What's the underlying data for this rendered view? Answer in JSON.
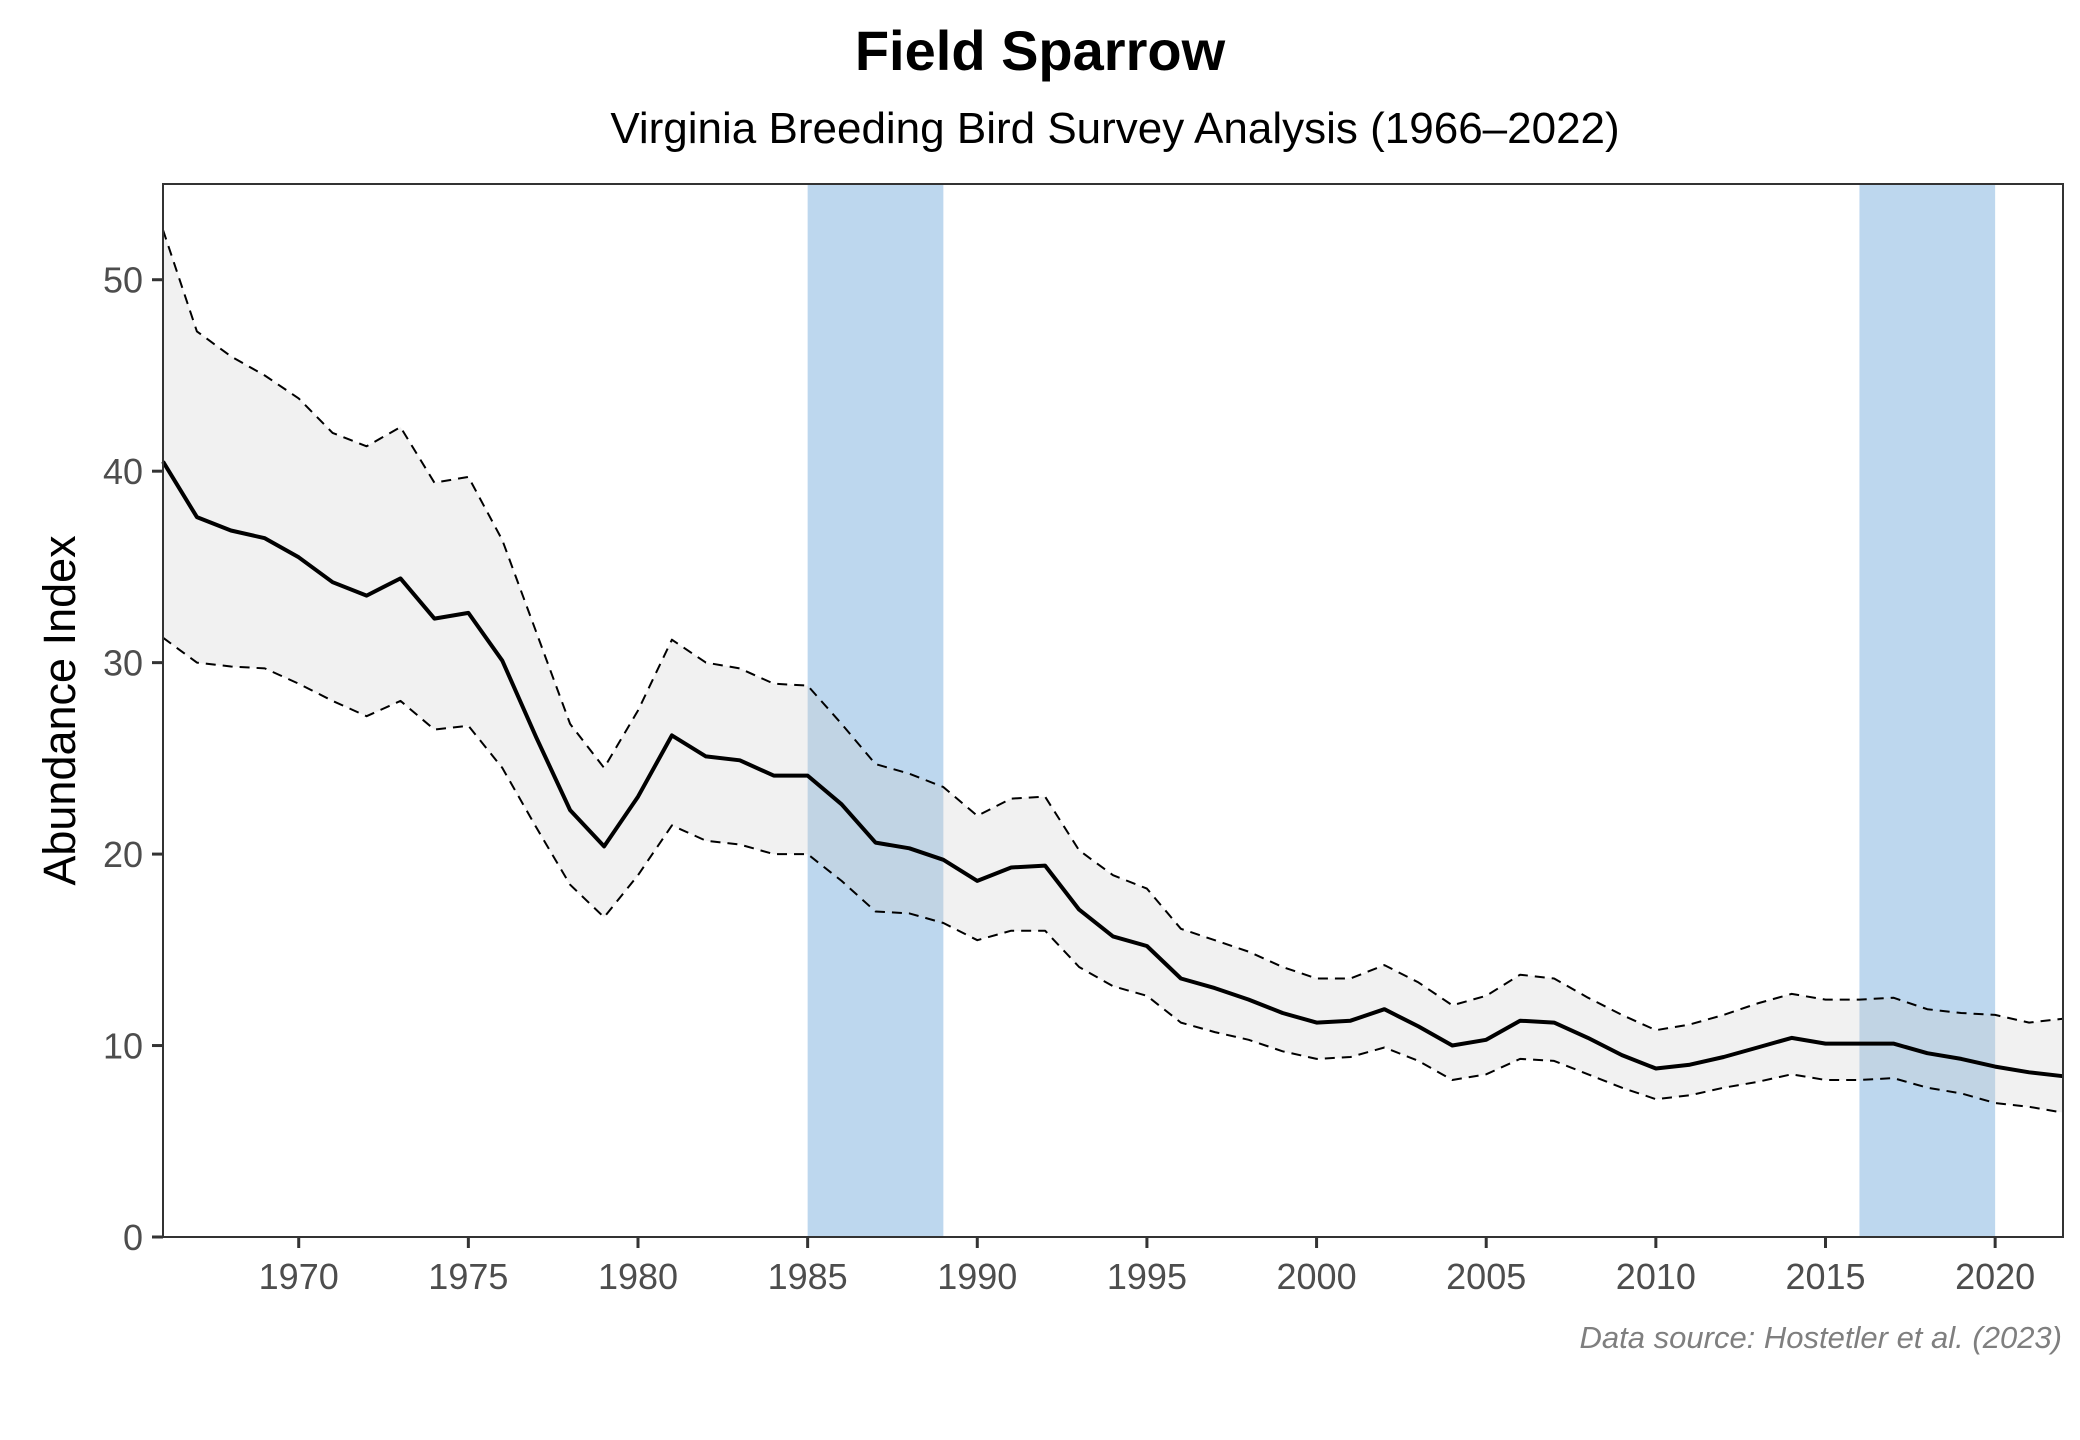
{
  "chart_data": {
    "type": "line",
    "title": "Field Sparrow",
    "subtitle": "Virginia Breeding Bird Survey Analysis (1966–2022)",
    "xlabel": "",
    "ylabel": "Abundance Index",
    "caption": "Data source: Hostetler et al. (2023)",
    "xlim": [
      1966,
      2022
    ],
    "ylim": [
      0,
      55
    ],
    "x_ticks": [
      1970,
      1975,
      1980,
      1985,
      1990,
      1995,
      2000,
      2005,
      2010,
      2015,
      2020
    ],
    "y_ticks": [
      0,
      10,
      20,
      30,
      40,
      50
    ],
    "grid": false,
    "legend": "none",
    "highlight_periods": [
      {
        "start": 1985,
        "end": 1989,
        "color": "#bdd7ee"
      },
      {
        "start": 2016,
        "end": 2020,
        "color": "#bdd7ee"
      }
    ],
    "colors": {
      "line": "#000000",
      "ribbon": "#f2f2f2",
      "band": "#bdd7ee",
      "axis": "#333333"
    },
    "x": [
      1966,
      1967,
      1968,
      1969,
      1970,
      1971,
      1972,
      1973,
      1974,
      1975,
      1976,
      1977,
      1978,
      1979,
      1980,
      1981,
      1982,
      1983,
      1984,
      1985,
      1986,
      1987,
      1988,
      1989,
      1990,
      1991,
      1992,
      1993,
      1994,
      1995,
      1996,
      1997,
      1998,
      1999,
      2000,
      2001,
      2002,
      2003,
      2004,
      2005,
      2006,
      2007,
      2008,
      2009,
      2010,
      2011,
      2012,
      2013,
      2014,
      2015,
      2016,
      2017,
      2018,
      2019,
      2020,
      2021,
      2022
    ],
    "series": [
      {
        "name": "Abundance Index",
        "style": "solid",
        "values": [
          40.5,
          37.6,
          36.9,
          36.5,
          35.5,
          34.2,
          33.5,
          34.4,
          32.3,
          32.6,
          30.1,
          26.1,
          22.3,
          20.4,
          23.0,
          26.2,
          25.1,
          24.9,
          24.1,
          24.1,
          22.6,
          20.6,
          20.3,
          19.7,
          18.6,
          19.3,
          19.4,
          17.1,
          15.7,
          15.2,
          13.5,
          13.0,
          12.4,
          11.7,
          11.2,
          11.3,
          11.9,
          11.0,
          10.0,
          10.3,
          11.3,
          11.2,
          10.4,
          9.5,
          8.8,
          9.0,
          9.4,
          9.9,
          10.4,
          10.1,
          10.1,
          10.1,
          9.6,
          9.3,
          8.9,
          8.6,
          8.4
        ]
      },
      {
        "name": "Upper credible limit",
        "style": "dashed",
        "values": [
          52.6,
          47.3,
          46.0,
          45.0,
          43.8,
          42.0,
          41.3,
          42.3,
          39.4,
          39.7,
          36.4,
          31.6,
          26.8,
          24.5,
          27.5,
          31.2,
          30.0,
          29.7,
          28.9,
          28.8,
          26.8,
          24.7,
          24.2,
          23.5,
          22.0,
          22.9,
          23.0,
          20.2,
          18.9,
          18.2,
          16.1,
          15.5,
          14.9,
          14.1,
          13.5,
          13.5,
          14.2,
          13.3,
          12.1,
          12.6,
          13.7,
          13.5,
          12.5,
          11.6,
          10.8,
          11.1,
          11.6,
          12.2,
          12.7,
          12.4,
          12.4,
          12.5,
          11.9,
          11.7,
          11.6,
          11.2,
          11.4
        ]
      },
      {
        "name": "Lower credible limit",
        "style": "dashed",
        "values": [
          31.3,
          30.0,
          29.8,
          29.7,
          28.9,
          28.0,
          27.2,
          28.0,
          26.5,
          26.7,
          24.5,
          21.4,
          18.4,
          16.7,
          18.9,
          21.5,
          20.7,
          20.5,
          20.0,
          20.0,
          18.6,
          17.0,
          16.9,
          16.4,
          15.5,
          16.0,
          16.0,
          14.1,
          13.1,
          12.6,
          11.2,
          10.7,
          10.3,
          9.7,
          9.3,
          9.4,
          9.9,
          9.2,
          8.2,
          8.5,
          9.3,
          9.2,
          8.5,
          7.8,
          7.2,
          7.4,
          7.8,
          8.1,
          8.5,
          8.2,
          8.2,
          8.3,
          7.8,
          7.5,
          7.0,
          6.8,
          6.5
        ]
      }
    ]
  }
}
